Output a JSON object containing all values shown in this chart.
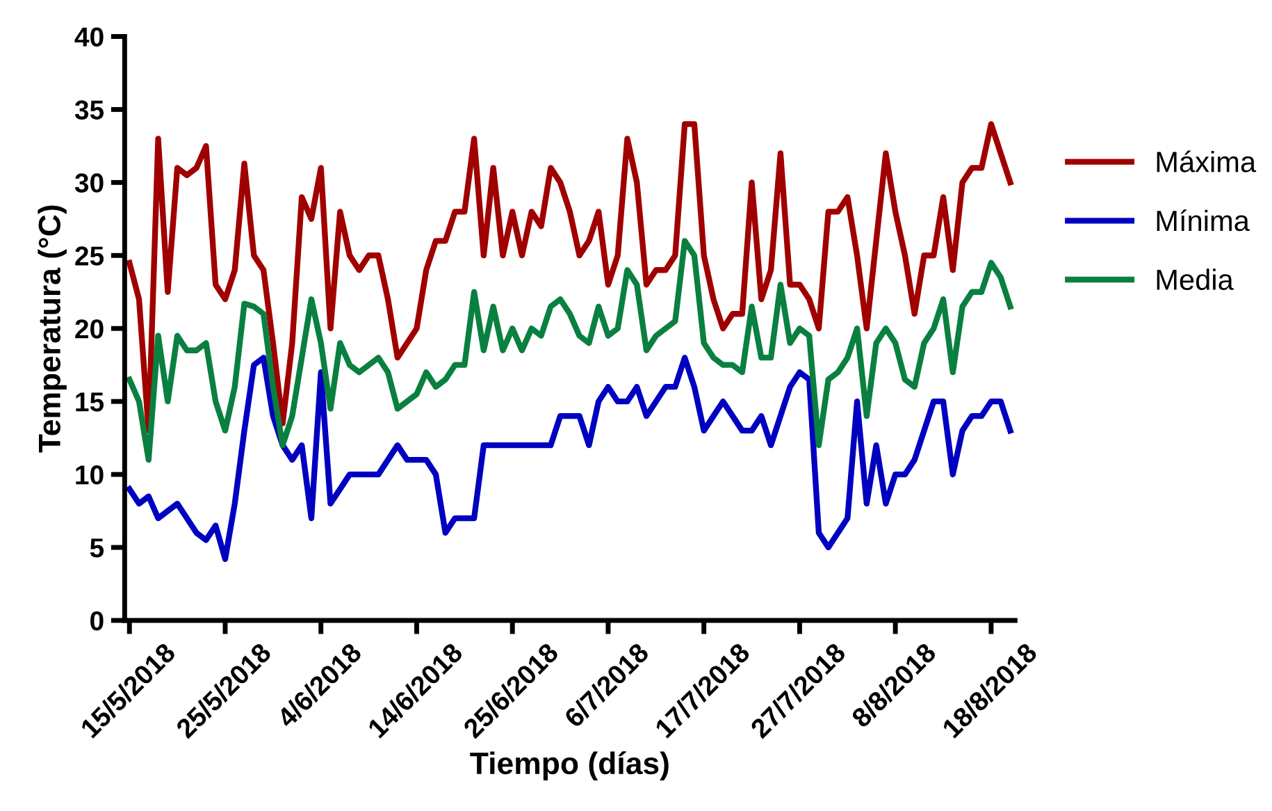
{
  "chart_data": {
    "type": "line",
    "xlabel": "Tiempo (días)",
    "ylabel": "Temperatura (°C)",
    "categories": [
      "15/5/2018",
      null,
      null,
      null,
      null,
      null,
      null,
      null,
      null,
      null,
      "25/5/2018",
      null,
      null,
      null,
      null,
      null,
      null,
      null,
      null,
      null,
      "4/6/2018",
      null,
      null,
      null,
      null,
      null,
      null,
      null,
      null,
      null,
      "14/6/2018",
      null,
      null,
      null,
      null,
      null,
      null,
      null,
      null,
      null,
      "25/6/2018",
      null,
      null,
      null,
      null,
      null,
      null,
      null,
      null,
      null,
      "6/7/2018",
      null,
      null,
      null,
      null,
      null,
      null,
      null,
      null,
      null,
      "17/7/2018",
      null,
      null,
      null,
      null,
      null,
      null,
      null,
      null,
      null,
      "27/7/2018",
      null,
      null,
      null,
      null,
      null,
      null,
      null,
      null,
      null,
      "8/8/2018",
      null,
      null,
      null,
      null,
      null,
      null,
      null,
      null,
      null,
      "18/8/2018",
      null,
      null
    ],
    "series": [
      {
        "name": "Máxima",
        "color": "#a00000",
        "values": [
          24.5,
          22,
          13,
          33,
          22.5,
          31,
          30.5,
          31,
          32.5,
          23,
          22,
          24,
          31.3,
          25,
          24,
          19,
          13.5,
          19,
          29,
          27.5,
          31,
          20,
          28,
          25,
          24,
          25,
          25,
          22,
          18,
          19,
          20,
          24,
          26,
          26,
          28,
          28,
          33,
          25,
          31,
          25,
          28,
          25,
          28,
          27,
          31,
          30,
          28,
          25,
          26,
          28,
          23,
          25,
          33,
          30,
          23,
          24,
          24,
          25,
          34,
          34,
          25,
          22,
          20,
          21,
          21,
          30,
          22,
          24,
          32,
          23,
          23,
          22,
          20,
          28,
          28,
          29,
          25,
          20,
          26,
          32,
          28,
          25,
          21,
          25,
          25,
          29,
          24,
          30,
          31,
          31,
          34,
          32,
          30
        ]
      },
      {
        "name": "Mínima",
        "color": "#0000c0",
        "values": [
          9,
          8,
          8.5,
          7,
          7.5,
          8,
          7,
          6,
          5.5,
          6.5,
          4.2,
          8,
          13,
          17.5,
          18,
          14,
          12,
          11,
          12,
          7,
          17,
          8,
          9,
          10,
          10,
          10,
          10,
          11,
          12,
          11,
          11,
          11,
          10,
          6,
          7,
          7,
          7,
          12,
          12,
          12,
          12,
          12,
          12,
          12,
          12,
          14,
          14,
          14,
          12,
          15,
          16,
          15,
          15,
          16,
          14,
          15,
          16,
          16,
          18,
          16,
          13,
          14,
          15,
          14,
          13,
          13,
          14,
          12,
          14,
          16,
          17,
          16.5,
          6,
          5,
          6,
          7,
          15,
          8,
          12,
          8,
          10,
          10,
          11,
          13,
          15,
          15,
          10,
          13,
          14,
          14,
          15,
          15,
          13
        ]
      },
      {
        "name": "Media",
        "color": "#0a8040",
        "values": [
          16.5,
          15,
          11,
          19.5,
          15,
          19.5,
          18.5,
          18.5,
          19,
          15,
          13,
          16,
          21.7,
          21.5,
          21,
          16,
          12,
          14,
          18,
          22,
          19,
          14.5,
          19,
          17.5,
          17,
          17.5,
          18,
          17,
          14.5,
          15,
          15.5,
          17,
          16,
          16.5,
          17.5,
          17.5,
          22.5,
          18.5,
          21.5,
          18.5,
          20,
          18.5,
          20,
          19.5,
          21.5,
          22,
          21,
          19.5,
          19,
          21.5,
          19.5,
          20,
          24,
          23,
          18.5,
          19.5,
          20,
          20.5,
          26,
          25,
          19,
          18,
          17.5,
          17.5,
          17,
          21.5,
          18,
          18,
          23,
          19,
          20,
          19.5,
          12,
          16.5,
          17,
          18,
          20,
          14,
          19,
          20,
          19,
          16.5,
          16,
          19,
          20,
          22,
          17,
          21.5,
          22.5,
          22.5,
          24.5,
          23.5,
          21.5
        ]
      }
    ],
    "ylim": [
      0,
      40
    ],
    "yticks": [
      0,
      5,
      10,
      15,
      20,
      25,
      30,
      35,
      40
    ],
    "grid": false,
    "legend": "right",
    "marker": "none",
    "line_style": "solid"
  }
}
